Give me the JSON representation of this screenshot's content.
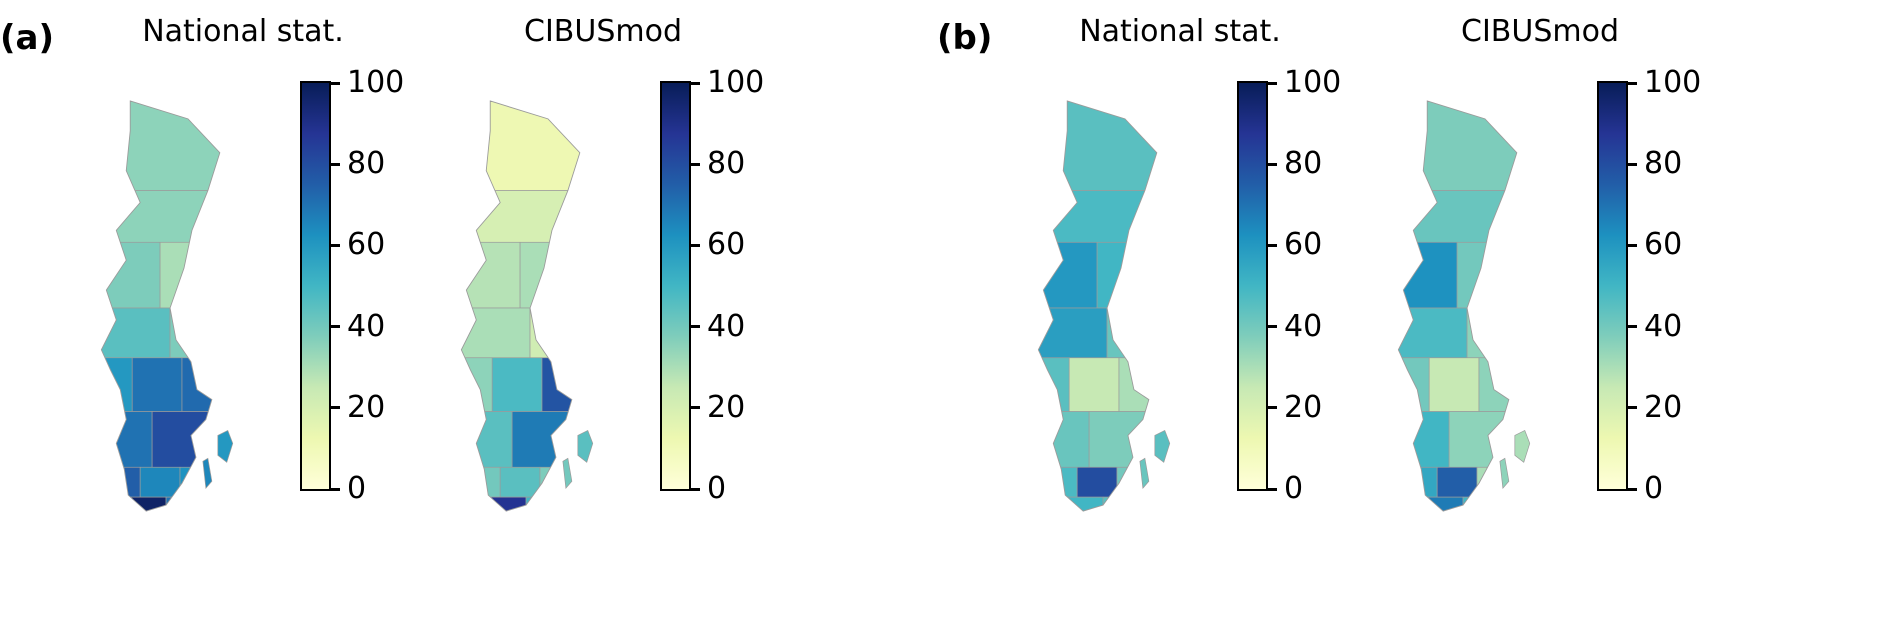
{
  "figure": {
    "panels": [
      {
        "label": "(a)",
        "maps": [
          {
            "title": "National stat."
          },
          {
            "title": "CIBUSmod"
          }
        ]
      },
      {
        "label": "(b)",
        "maps": [
          {
            "title": "National stat."
          },
          {
            "title": "CIBUSmod"
          }
        ]
      }
    ]
  },
  "colorbar": {
    "min": 0,
    "max": 100,
    "tick_labels": [
      "100",
      "80",
      "60",
      "40",
      "20",
      "0"
    ]
  },
  "colormap": {
    "name": "YlGnBu",
    "stops": [
      [
        0,
        "#ffffd9"
      ],
      [
        12.5,
        "#edf8b1"
      ],
      [
        25,
        "#c7e9b4"
      ],
      [
        37.5,
        "#7fcdbb"
      ],
      [
        50,
        "#41b6c4"
      ],
      [
        62.5,
        "#1d91c0"
      ],
      [
        75,
        "#225ea8"
      ],
      [
        87.5,
        "#253494"
      ],
      [
        100,
        "#081d58"
      ]
    ]
  },
  "chart_data": [
    {
      "type": "heatmap",
      "subtype": "choropleth-map",
      "panel": "(a)",
      "title": "National stat.",
      "geography": "Sweden regions",
      "colormap": "YlGnBu",
      "value_range": [
        0,
        100
      ],
      "values": {
        "norrbotten": 35,
        "vasterbotten": 35,
        "jamtland": 38,
        "vasternorrland": 30,
        "dalarna": 45,
        "gavleborg": 38,
        "varmland": 60,
        "orebro": 70,
        "stockholm": 72,
        "vastra_gotaland": 70,
        "ostergotland": 80,
        "halland": 75,
        "kronoberg": 65,
        "kalmar": 62,
        "skane": 97,
        "blekinge": 70,
        "gotland": 60,
        "oland": 65
      }
    },
    {
      "type": "heatmap",
      "subtype": "choropleth-map",
      "panel": "(a)",
      "title": "CIBUSmod",
      "geography": "Sweden regions",
      "colormap": "YlGnBu",
      "value_range": [
        0,
        100
      ],
      "values": {
        "norrbotten": 12,
        "vasterbotten": 20,
        "jamtland": 28,
        "vasternorrland": 30,
        "dalarna": 30,
        "gavleborg": 22,
        "varmland": 35,
        "orebro": 48,
        "stockholm": 78,
        "vastra_gotaland": 45,
        "ostergotland": 68,
        "halland": 40,
        "kronoberg": 45,
        "kalmar": 38,
        "skane": 88,
        "blekinge": 50,
        "gotland": 45,
        "oland": 40
      }
    },
    {
      "type": "heatmap",
      "subtype": "choropleth-map",
      "panel": "(b)",
      "title": "National stat.",
      "geography": "Sweden regions",
      "colormap": "YlGnBu",
      "value_range": [
        0,
        100
      ],
      "values": {
        "norrbotten": 45,
        "vasterbotten": 48,
        "jamtland": 60,
        "vasternorrland": 50,
        "dalarna": 58,
        "gavleborg": 42,
        "varmland": 45,
        "orebro": 25,
        "stockholm": 30,
        "vastra_gotaland": 42,
        "ostergotland": 38,
        "halland": 48,
        "kronoberg": 80,
        "kalmar": 40,
        "skane": 50,
        "blekinge": 45,
        "gotland": 45,
        "oland": 42
      }
    },
    {
      "type": "heatmap",
      "subtype": "choropleth-map",
      "panel": "(b)",
      "title": "CIBUSmod",
      "geography": "Sweden regions",
      "colormap": "YlGnBu",
      "value_range": [
        0,
        100
      ],
      "values": {
        "norrbotten": 38,
        "vasterbotten": 42,
        "jamtland": 62,
        "vasternorrland": 40,
        "dalarna": 48,
        "gavleborg": 35,
        "varmland": 40,
        "orebro": 25,
        "stockholm": 35,
        "vastra_gotaland": 50,
        "ostergotland": 35,
        "halland": 55,
        "kronoberg": 75,
        "kalmar": 30,
        "skane": 68,
        "blekinge": 50,
        "gotland": 30,
        "oland": 35
      }
    }
  ]
}
